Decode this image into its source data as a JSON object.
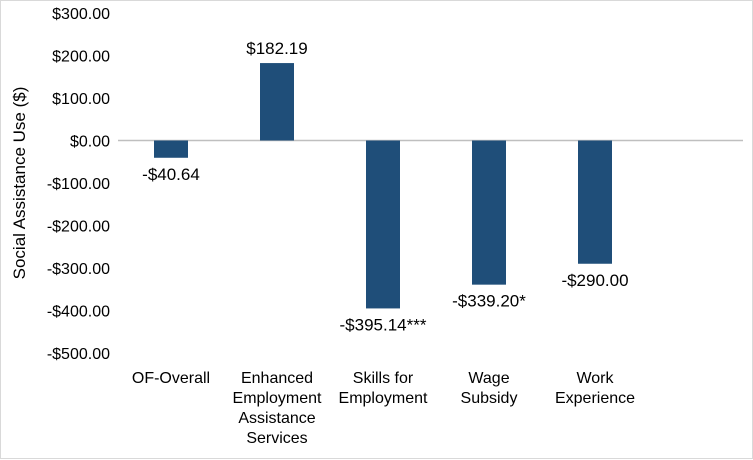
{
  "chart_data": {
    "type": "bar",
    "title": "",
    "xlabel": "",
    "ylabel": "Social Assistance Use ($)",
    "ylim": [
      -500,
      300
    ],
    "yticks": [
      300,
      200,
      100,
      0,
      -100,
      -200,
      -300,
      -400,
      -500
    ],
    "ytick_labels": [
      "$300.00",
      "$200.00",
      "$100.00",
      "$0.00",
      "-$100.00",
      "-$200.00",
      "-$300.00",
      "-$400.00",
      "-$500.00"
    ],
    "categories": [
      [
        "OF-Overall"
      ],
      [
        "Enhanced",
        "Employment",
        "Assistance",
        "Services"
      ],
      [
        "Skills for",
        "Employment"
      ],
      [
        "Wage",
        "Subsidy"
      ],
      [
        "Work",
        "Experience"
      ]
    ],
    "values": [
      -40.64,
      182.19,
      -395.14,
      -339.2,
      -290.0
    ],
    "data_labels": [
      "-$40.64",
      "$182.19",
      "-$395.14***",
      "-$339.20*",
      "-$290.00"
    ],
    "bar_color": "#1f4e79",
    "grid": false,
    "legend": "none"
  }
}
